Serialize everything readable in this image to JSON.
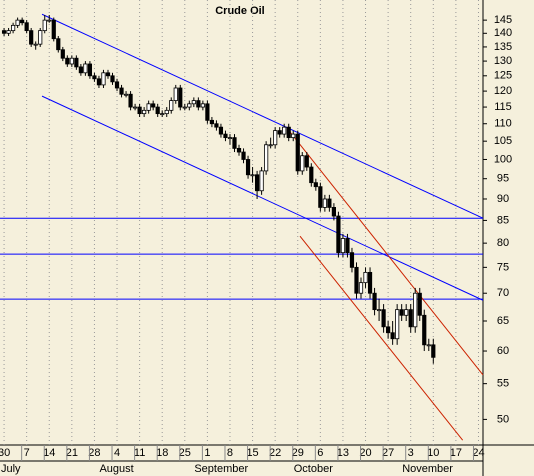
{
  "chart_data": {
    "type": "candlestick",
    "title": "Crude Oil",
    "log_scale": true,
    "ylim": [
      46.7,
      153
    ],
    "yticks": [
      145,
      140,
      135,
      130,
      125,
      120,
      115,
      110,
      105,
      100,
      95,
      90,
      85,
      80,
      75,
      70,
      65,
      60,
      55,
      50
    ],
    "xlim": [
      -0.9,
      106
    ],
    "xticks": [
      {
        "value": 0,
        "label": "30"
      },
      {
        "value": 5,
        "label": "7"
      },
      {
        "value": 10,
        "label": "14"
      },
      {
        "value": 15,
        "label": "21"
      },
      {
        "value": 20,
        "label": "28"
      },
      {
        "value": 25,
        "label": "4"
      },
      {
        "value": 30,
        "label": "11"
      },
      {
        "value": 35,
        "label": "18"
      },
      {
        "value": 40,
        "label": "25"
      },
      {
        "value": 45,
        "label": "1"
      },
      {
        "value": 50,
        "label": "8"
      },
      {
        "value": 55,
        "label": "15"
      },
      {
        "value": 60,
        "label": "22"
      },
      {
        "value": 65,
        "label": "29"
      },
      {
        "value": 70,
        "label": "6"
      },
      {
        "value": 75,
        "label": "13"
      },
      {
        "value": 80,
        "label": "20"
      },
      {
        "value": 85,
        "label": "27"
      },
      {
        "value": 90,
        "label": "3"
      },
      {
        "value": 95,
        "label": "10"
      },
      {
        "value": 100,
        "label": "17"
      },
      {
        "value": 105,
        "label": "24"
      }
    ],
    "months": [
      {
        "value": 0,
        "label": "July"
      },
      {
        "value": 22,
        "label": "August"
      },
      {
        "value": 43,
        "label": "September"
      },
      {
        "value": 65,
        "label": "October"
      },
      {
        "value": 89,
        "label": "November"
      }
    ],
    "grid": true,
    "up_color": "#ffffff",
    "down_color": "#000000",
    "open": [
      141,
      140,
      141,
      143,
      145,
      144,
      141,
      136,
      136,
      141,
      145,
      145,
      138,
      134,
      131,
      129,
      131,
      128,
      126,
      129,
      125,
      124,
      122,
      126,
      125,
      123,
      121,
      119,
      119,
      115,
      115,
      113,
      114,
      116,
      115,
      113,
      113,
      114,
      117,
      121,
      115,
      115,
      116,
      117,
      115,
      116,
      111,
      110,
      109,
      107,
      106,
      106,
      103,
      102,
      100,
      96,
      96,
      92,
      97,
      104,
      104,
      108,
      107,
      109,
      106,
      107,
      97,
      101,
      98,
      94,
      93,
      88,
      90,
      88,
      86,
      78,
      81,
      78,
      75,
      70,
      72,
      74,
      70,
      67,
      67,
      64,
      63,
      62,
      67,
      66,
      67,
      64,
      70,
      66,
      61,
      61
    ],
    "high": [
      142,
      142,
      144,
      146,
      146,
      145,
      142,
      137,
      142,
      147,
      147,
      146,
      139,
      135,
      132,
      132,
      132,
      129,
      130,
      130,
      126,
      125,
      127,
      127,
      126,
      124,
      122,
      120,
      120,
      116,
      116,
      115,
      117,
      117,
      116,
      114,
      115,
      118,
      122,
      122,
      116,
      117,
      118,
      118,
      117,
      117,
      112,
      111,
      110,
      108,
      107,
      107,
      104,
      103,
      101,
      98,
      97,
      98,
      105,
      106,
      109,
      109,
      110,
      110,
      108,
      108,
      102,
      102,
      99,
      95,
      94,
      91,
      91,
      89,
      87,
      82,
      82,
      79,
      76,
      73,
      75,
      75,
      71,
      69,
      68,
      65,
      65,
      68,
      68,
      68,
      68,
      71,
      71,
      67,
      62,
      62
    ],
    "low": [
      139,
      139,
      140,
      142,
      143,
      140,
      135,
      134,
      135,
      140,
      144,
      137,
      133,
      130,
      128,
      128,
      127,
      125,
      125,
      124,
      123,
      121,
      121,
      124,
      122,
      120,
      118,
      118,
      114,
      114,
      112,
      112,
      113,
      114,
      112,
      112,
      112,
      113,
      116,
      114,
      114,
      114,
      115,
      114,
      114,
      110,
      109,
      108,
      106,
      105,
      104,
      102,
      101,
      99,
      95,
      94,
      90,
      91,
      96,
      103,
      103,
      106,
      106,
      105,
      105,
      96,
      96,
      97,
      93,
      92,
      87,
      87,
      87,
      85,
      77,
      77,
      77,
      74,
      69,
      69,
      71,
      69,
      66,
      65,
      63,
      62,
      61,
      61,
      65,
      65,
      63,
      63,
      65,
      60,
      60,
      58
    ],
    "close": [
      140,
      141,
      143,
      145,
      144,
      141,
      136,
      136,
      141,
      145,
      145,
      138,
      134,
      131,
      129,
      131,
      128,
      126,
      129,
      125,
      124,
      122,
      126,
      125,
      123,
      121,
      119,
      119,
      115,
      115,
      113,
      114,
      116,
      115,
      113,
      113,
      114,
      117,
      121,
      115,
      115,
      116,
      117,
      115,
      116,
      111,
      110,
      109,
      107,
      106,
      106,
      103,
      102,
      100,
      96,
      96,
      92,
      97,
      104,
      104,
      108,
      107,
      109,
      106,
      107,
      97,
      101,
      98,
      94,
      93,
      88,
      90,
      88,
      86,
      78,
      81,
      78,
      75,
      70,
      72,
      74,
      70,
      67,
      67,
      64,
      63,
      62,
      67,
      66,
      67,
      64,
      70,
      66,
      61,
      61,
      59
    ],
    "hlines": [
      {
        "value": 85.5,
        "color": "#0000ff"
      },
      {
        "value": 77.7,
        "color": "#0000ff"
      },
      {
        "value": 68.9,
        "color": "#0000ff"
      }
    ],
    "trendlines": [
      {
        "x": [
          8.4,
          106
        ],
        "y": [
          147.3,
          85.5
        ],
        "color": "#0000ff"
      },
      {
        "x": [
          8.4,
          106
        ],
        "y": [
          118.4,
          68.7
        ],
        "color": "#0000ff"
      },
      {
        "x": [
          63.3,
          106
        ],
        "y": [
          107.6,
          56.3
        ],
        "color": "#cc2200"
      },
      {
        "x": [
          65.5,
          101.5
        ],
        "y": [
          81.5,
          47.3
        ],
        "color": "#cc2200"
      }
    ]
  }
}
